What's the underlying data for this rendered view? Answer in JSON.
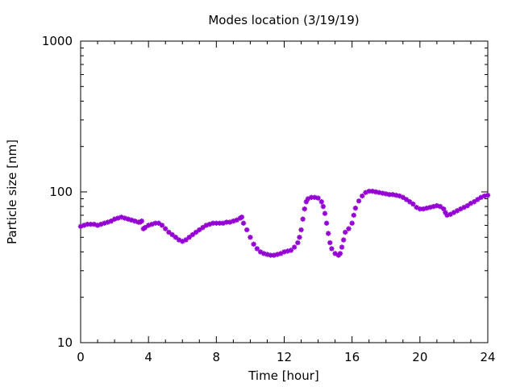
{
  "chart_data": {
    "type": "scatter",
    "title": "Modes location (3/19/19)",
    "xlabel": "Time [hour]",
    "ylabel": "Particle size [nm]",
    "xlim": [
      0,
      24
    ],
    "ylim": [
      10,
      1000
    ],
    "yscale": "log",
    "grid": false,
    "legend": "none",
    "marker": "asterisk",
    "color": "#9400d3",
    "xticks": [
      0,
      4,
      8,
      12,
      16,
      20,
      24
    ],
    "xtick_labels": [
      "0",
      "4",
      "8",
      "12",
      "16",
      "20",
      "24"
    ],
    "yticks": [
      10,
      100,
      1000
    ],
    "ytick_labels": [
      "10",
      "100",
      "1000"
    ],
    "points": [
      [
        0.0,
        59
      ],
      [
        0.2,
        60
      ],
      [
        0.4,
        61
      ],
      [
        0.6,
        61
      ],
      [
        0.8,
        61
      ],
      [
        1.0,
        60
      ],
      [
        1.2,
        61
      ],
      [
        1.4,
        62
      ],
      [
        1.6,
        63
      ],
      [
        1.8,
        64
      ],
      [
        2.0,
        66
      ],
      [
        2.2,
        67
      ],
      [
        2.4,
        68
      ],
      [
        2.6,
        67
      ],
      [
        2.8,
        66
      ],
      [
        3.0,
        65
      ],
      [
        3.2,
        64
      ],
      [
        3.4,
        63
      ],
      [
        3.5,
        63
      ],
      [
        3.6,
        64
      ],
      [
        3.7,
        57
      ],
      [
        3.8,
        58
      ],
      [
        4.0,
        60
      ],
      [
        4.2,
        61
      ],
      [
        4.4,
        62
      ],
      [
        4.6,
        62
      ],
      [
        4.8,
        60
      ],
      [
        5.0,
        57
      ],
      [
        5.2,
        54
      ],
      [
        5.4,
        52
      ],
      [
        5.6,
        50
      ],
      [
        5.8,
        48
      ],
      [
        6.0,
        47
      ],
      [
        6.2,
        48
      ],
      [
        6.4,
        50
      ],
      [
        6.6,
        52
      ],
      [
        6.8,
        54
      ],
      [
        7.0,
        56
      ],
      [
        7.2,
        58
      ],
      [
        7.4,
        60
      ],
      [
        7.6,
        61
      ],
      [
        7.8,
        62
      ],
      [
        8.0,
        62
      ],
      [
        8.2,
        62
      ],
      [
        8.4,
        62
      ],
      [
        8.6,
        63
      ],
      [
        8.8,
        63
      ],
      [
        9.0,
        64
      ],
      [
        9.2,
        65
      ],
      [
        9.4,
        67
      ],
      [
        9.5,
        68
      ],
      [
        9.6,
        62
      ],
      [
        9.8,
        56
      ],
      [
        10.0,
        50
      ],
      [
        10.2,
        45
      ],
      [
        10.4,
        42
      ],
      [
        10.6,
        40
      ],
      [
        10.8,
        39
      ],
      [
        11.0,
        38.5
      ],
      [
        11.2,
        38
      ],
      [
        11.4,
        38
      ],
      [
        11.6,
        38.5
      ],
      [
        11.8,
        39
      ],
      [
        12.0,
        40
      ],
      [
        12.2,
        40.5
      ],
      [
        12.4,
        41
      ],
      [
        12.6,
        43
      ],
      [
        12.8,
        46
      ],
      [
        12.9,
        50
      ],
      [
        13.0,
        56
      ],
      [
        13.1,
        66
      ],
      [
        13.2,
        77
      ],
      [
        13.3,
        86
      ],
      [
        13.4,
        90
      ],
      [
        13.6,
        92
      ],
      [
        13.8,
        92
      ],
      [
        14.0,
        91
      ],
      [
        14.2,
        86
      ],
      [
        14.3,
        80
      ],
      [
        14.4,
        72
      ],
      [
        14.5,
        62
      ],
      [
        14.6,
        53
      ],
      [
        14.7,
        46
      ],
      [
        14.8,
        42
      ],
      [
        15.0,
        39
      ],
      [
        15.2,
        38
      ],
      [
        15.3,
        39
      ],
      [
        15.4,
        43
      ],
      [
        15.5,
        48
      ],
      [
        15.6,
        54
      ],
      [
        15.8,
        57
      ],
      [
        16.0,
        62
      ],
      [
        16.1,
        70
      ],
      [
        16.2,
        78
      ],
      [
        16.4,
        87
      ],
      [
        16.6,
        94
      ],
      [
        16.8,
        99
      ],
      [
        17.0,
        101
      ],
      [
        17.2,
        101
      ],
      [
        17.4,
        100
      ],
      [
        17.6,
        99
      ],
      [
        17.8,
        98
      ],
      [
        18.0,
        97
      ],
      [
        18.2,
        96
      ],
      [
        18.4,
        96
      ],
      [
        18.6,
        95
      ],
      [
        18.8,
        94
      ],
      [
        19.0,
        92
      ],
      [
        19.2,
        89
      ],
      [
        19.4,
        86
      ],
      [
        19.6,
        83
      ],
      [
        19.8,
        79
      ],
      [
        20.0,
        77
      ],
      [
        20.2,
        77
      ],
      [
        20.4,
        78
      ],
      [
        20.6,
        79
      ],
      [
        20.8,
        80
      ],
      [
        21.0,
        81
      ],
      [
        21.2,
        80
      ],
      [
        21.4,
        77
      ],
      [
        21.5,
        73
      ],
      [
        21.6,
        70
      ],
      [
        21.8,
        71
      ],
      [
        22.0,
        73
      ],
      [
        22.2,
        75
      ],
      [
        22.4,
        77
      ],
      [
        22.6,
        79
      ],
      [
        22.8,
        81
      ],
      [
        23.0,
        84
      ],
      [
        23.2,
        86
      ],
      [
        23.4,
        89
      ],
      [
        23.6,
        92
      ],
      [
        23.8,
        94
      ],
      [
        24.0,
        95
      ]
    ]
  }
}
